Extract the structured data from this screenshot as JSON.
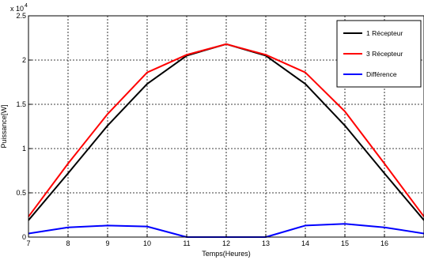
{
  "chart_data": {
    "type": "line",
    "xlabel": "Temps(Heures)",
    "ylabel": "Puissance[W]",
    "exponent_label": {
      "base": "x 10",
      "power": "4"
    },
    "xlim": [
      7,
      17
    ],
    "ylim": [
      0,
      25000
    ],
    "x_ticks": [
      7,
      8,
      9,
      10,
      11,
      12,
      13,
      14,
      15,
      16
    ],
    "y_ticks": [
      {
        "value": 0,
        "label": "0"
      },
      {
        "value": 5000,
        "label": "0.5"
      },
      {
        "value": 10000,
        "label": "1"
      },
      {
        "value": 15000,
        "label": "1.5"
      },
      {
        "value": 20000,
        "label": "2"
      },
      {
        "value": 25000,
        "label": "2.5"
      }
    ],
    "grid": true,
    "legend_position": "top-right",
    "x": [
      7,
      8,
      9,
      10,
      11,
      12,
      13,
      14,
      15,
      16,
      17
    ],
    "series": [
      {
        "name": "1 Récepteur",
        "color": "#000000",
        "values": [
          1900,
          7200,
          12600,
          17300,
          20500,
          21800,
          20500,
          17300,
          12600,
          7200,
          1900
        ]
      },
      {
        "name": "3 Récepteur",
        "color": "#ff0000",
        "values": [
          2300,
          8300,
          13900,
          18600,
          20600,
          21800,
          20600,
          18600,
          14200,
          8300,
          2300
        ]
      },
      {
        "name": "Différence",
        "color": "#0000ff",
        "values": [
          400,
          1100,
          1300,
          1200,
          0,
          0,
          0,
          1300,
          1500,
          1100,
          400
        ]
      }
    ]
  }
}
